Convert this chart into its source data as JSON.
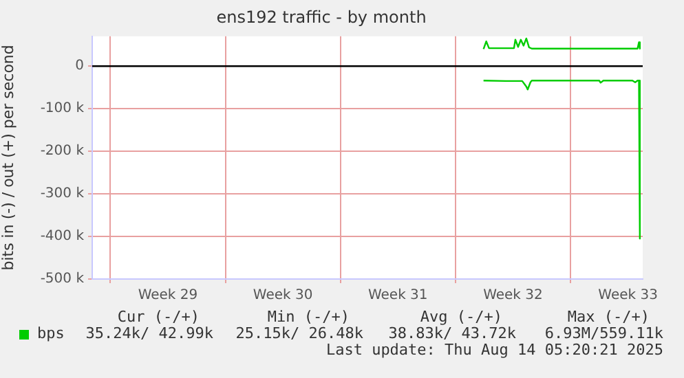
{
  "chart_data": {
    "type": "line",
    "title": "ens192 traffic - by month",
    "ylabel": "bits in (-) / out (+) per second",
    "xlim": [
      "2025-07-11T21:30",
      "2025-08-14T09:30"
    ],
    "xticks": [
      {
        "value": "2025-07-13T00:00",
        "label": null
      },
      {
        "value": "2025-07-16T12:00",
        "label": "Week 29"
      },
      {
        "value": "2025-07-20T00:00",
        "label": null
      },
      {
        "value": "2025-07-23T12:00",
        "label": "Week 30"
      },
      {
        "value": "2025-07-27T00:00",
        "label": null
      },
      {
        "value": "2025-07-30T12:00",
        "label": "Week 31"
      },
      {
        "value": "2025-08-03T00:00",
        "label": null
      },
      {
        "value": "2025-08-06T12:00",
        "label": "Week 32"
      },
      {
        "value": "2025-08-10T00:00",
        "label": null
      },
      {
        "value": "2025-08-13T12:00",
        "label": "Week 33"
      }
    ],
    "ylim": [
      -500000,
      70000
    ],
    "yticks": [
      {
        "value": -500000,
        "label": "-500 k"
      },
      {
        "value": -400000,
        "label": "-400 k"
      },
      {
        "value": -300000,
        "label": "-300 k"
      },
      {
        "value": -200000,
        "label": "-200 k"
      },
      {
        "value": -100000,
        "label": "-100 k"
      },
      0
    ],
    "grid": true,
    "legend": "bottom",
    "marker": "none",
    "line_style": "solid",
    "ref_lines": [
      {
        "axis": "y",
        "value": 0,
        "color": "#000000"
      }
    ],
    "series": [
      {
        "name": "bps",
        "color": "#00cc00",
        "x": [
          "2025-08-04T17:00",
          "2025-08-04T21:00",
          "2025-08-05T01:00",
          "2025-08-06T13:30",
          "2025-08-06T15:30",
          "2025-08-06T19:30",
          "2025-08-06T23:30",
          "2025-08-07T03:30",
          "2025-08-07T07:30",
          "2025-08-07T11:30",
          "2025-08-07T15:30",
          "2025-08-14T02:00",
          "2025-08-14T04:00",
          "2025-08-14T05:20"
        ],
        "values": [
          40000,
          58000,
          42000,
          42000,
          62000,
          45000,
          62000,
          48000,
          65000,
          44000,
          41000,
          41000,
          56000,
          41000
        ]
      },
      {
        "color": "#00cc00",
        "x": [
          "2025-08-04T17:00",
          "2025-08-06T01:30",
          "2025-08-07T01:30",
          "2025-08-07T07:30",
          "2025-08-07T09:30",
          "2025-08-07T13:30",
          "2025-08-07T15:30",
          "2025-08-11T18:00",
          "2025-08-11T20:00",
          "2025-08-12T00:00",
          "2025-08-13T18:30",
          "2025-08-13T22:30",
          "2025-08-14T02:00",
          "2025-08-14T04:00",
          "2025-08-14T05:20"
        ],
        "values": [
          -34000,
          -35000,
          -35000,
          -48000,
          -55000,
          -38000,
          -34000,
          -34000,
          -39000,
          -34000,
          -34000,
          -38000,
          -34000,
          -34000,
          -405000
        ]
      }
    ],
    "annotations": [
      "Cur (-/+)",
      "Min (-/+)",
      "Avg (-/+)",
      "Max (-/+)",
      "35.24k/ 42.99k",
      "25.15k/ 26.48k",
      "38.83k/ 43.72k",
      "6.93M/559.11k",
      "Last update: Thu Aug 14 05:20:21 2025"
    ]
  }
}
